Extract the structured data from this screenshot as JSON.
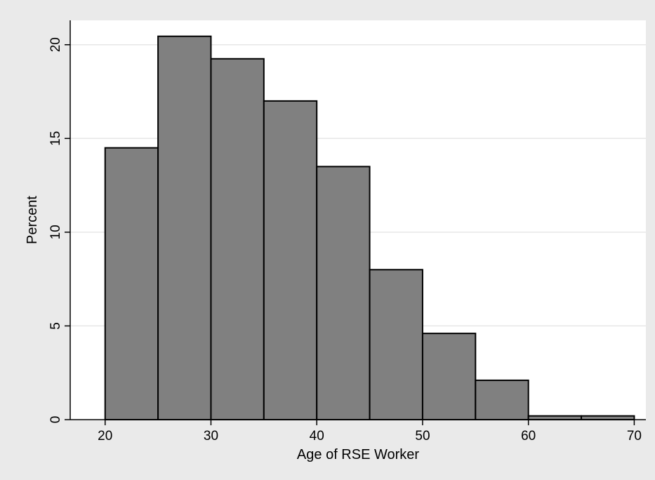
{
  "chart_data": {
    "type": "bar",
    "title": "",
    "xlabel": "Age of RSE Worker",
    "ylabel": "Percent",
    "bin_width": 5,
    "bins": [
      {
        "start": 20,
        "end": 25,
        "value": 14.5
      },
      {
        "start": 25,
        "end": 30,
        "value": 20.45
      },
      {
        "start": 30,
        "end": 35,
        "value": 19.25
      },
      {
        "start": 35,
        "end": 40,
        "value": 17.0
      },
      {
        "start": 40,
        "end": 45,
        "value": 13.5
      },
      {
        "start": 45,
        "end": 50,
        "value": 8.0
      },
      {
        "start": 50,
        "end": 55,
        "value": 4.6
      },
      {
        "start": 55,
        "end": 60,
        "value": 2.1
      },
      {
        "start": 60,
        "end": 65,
        "value": 0.2
      },
      {
        "start": 65,
        "end": 70,
        "value": 0.2
      }
    ],
    "xlim": [
      16.7,
      71.1
    ],
    "ylim": [
      0,
      21.3
    ],
    "x_ticks": [
      20,
      30,
      40,
      50,
      60,
      70
    ],
    "y_ticks": [
      0,
      5,
      10,
      15,
      20
    ],
    "grid": "horizontal",
    "legend": "none",
    "colors": {
      "background": "#eaeaea",
      "plot_area": "#ffffff",
      "bar_fill": "#808080",
      "bar_stroke": "#000000",
      "grid": "#e6e6e6"
    }
  }
}
